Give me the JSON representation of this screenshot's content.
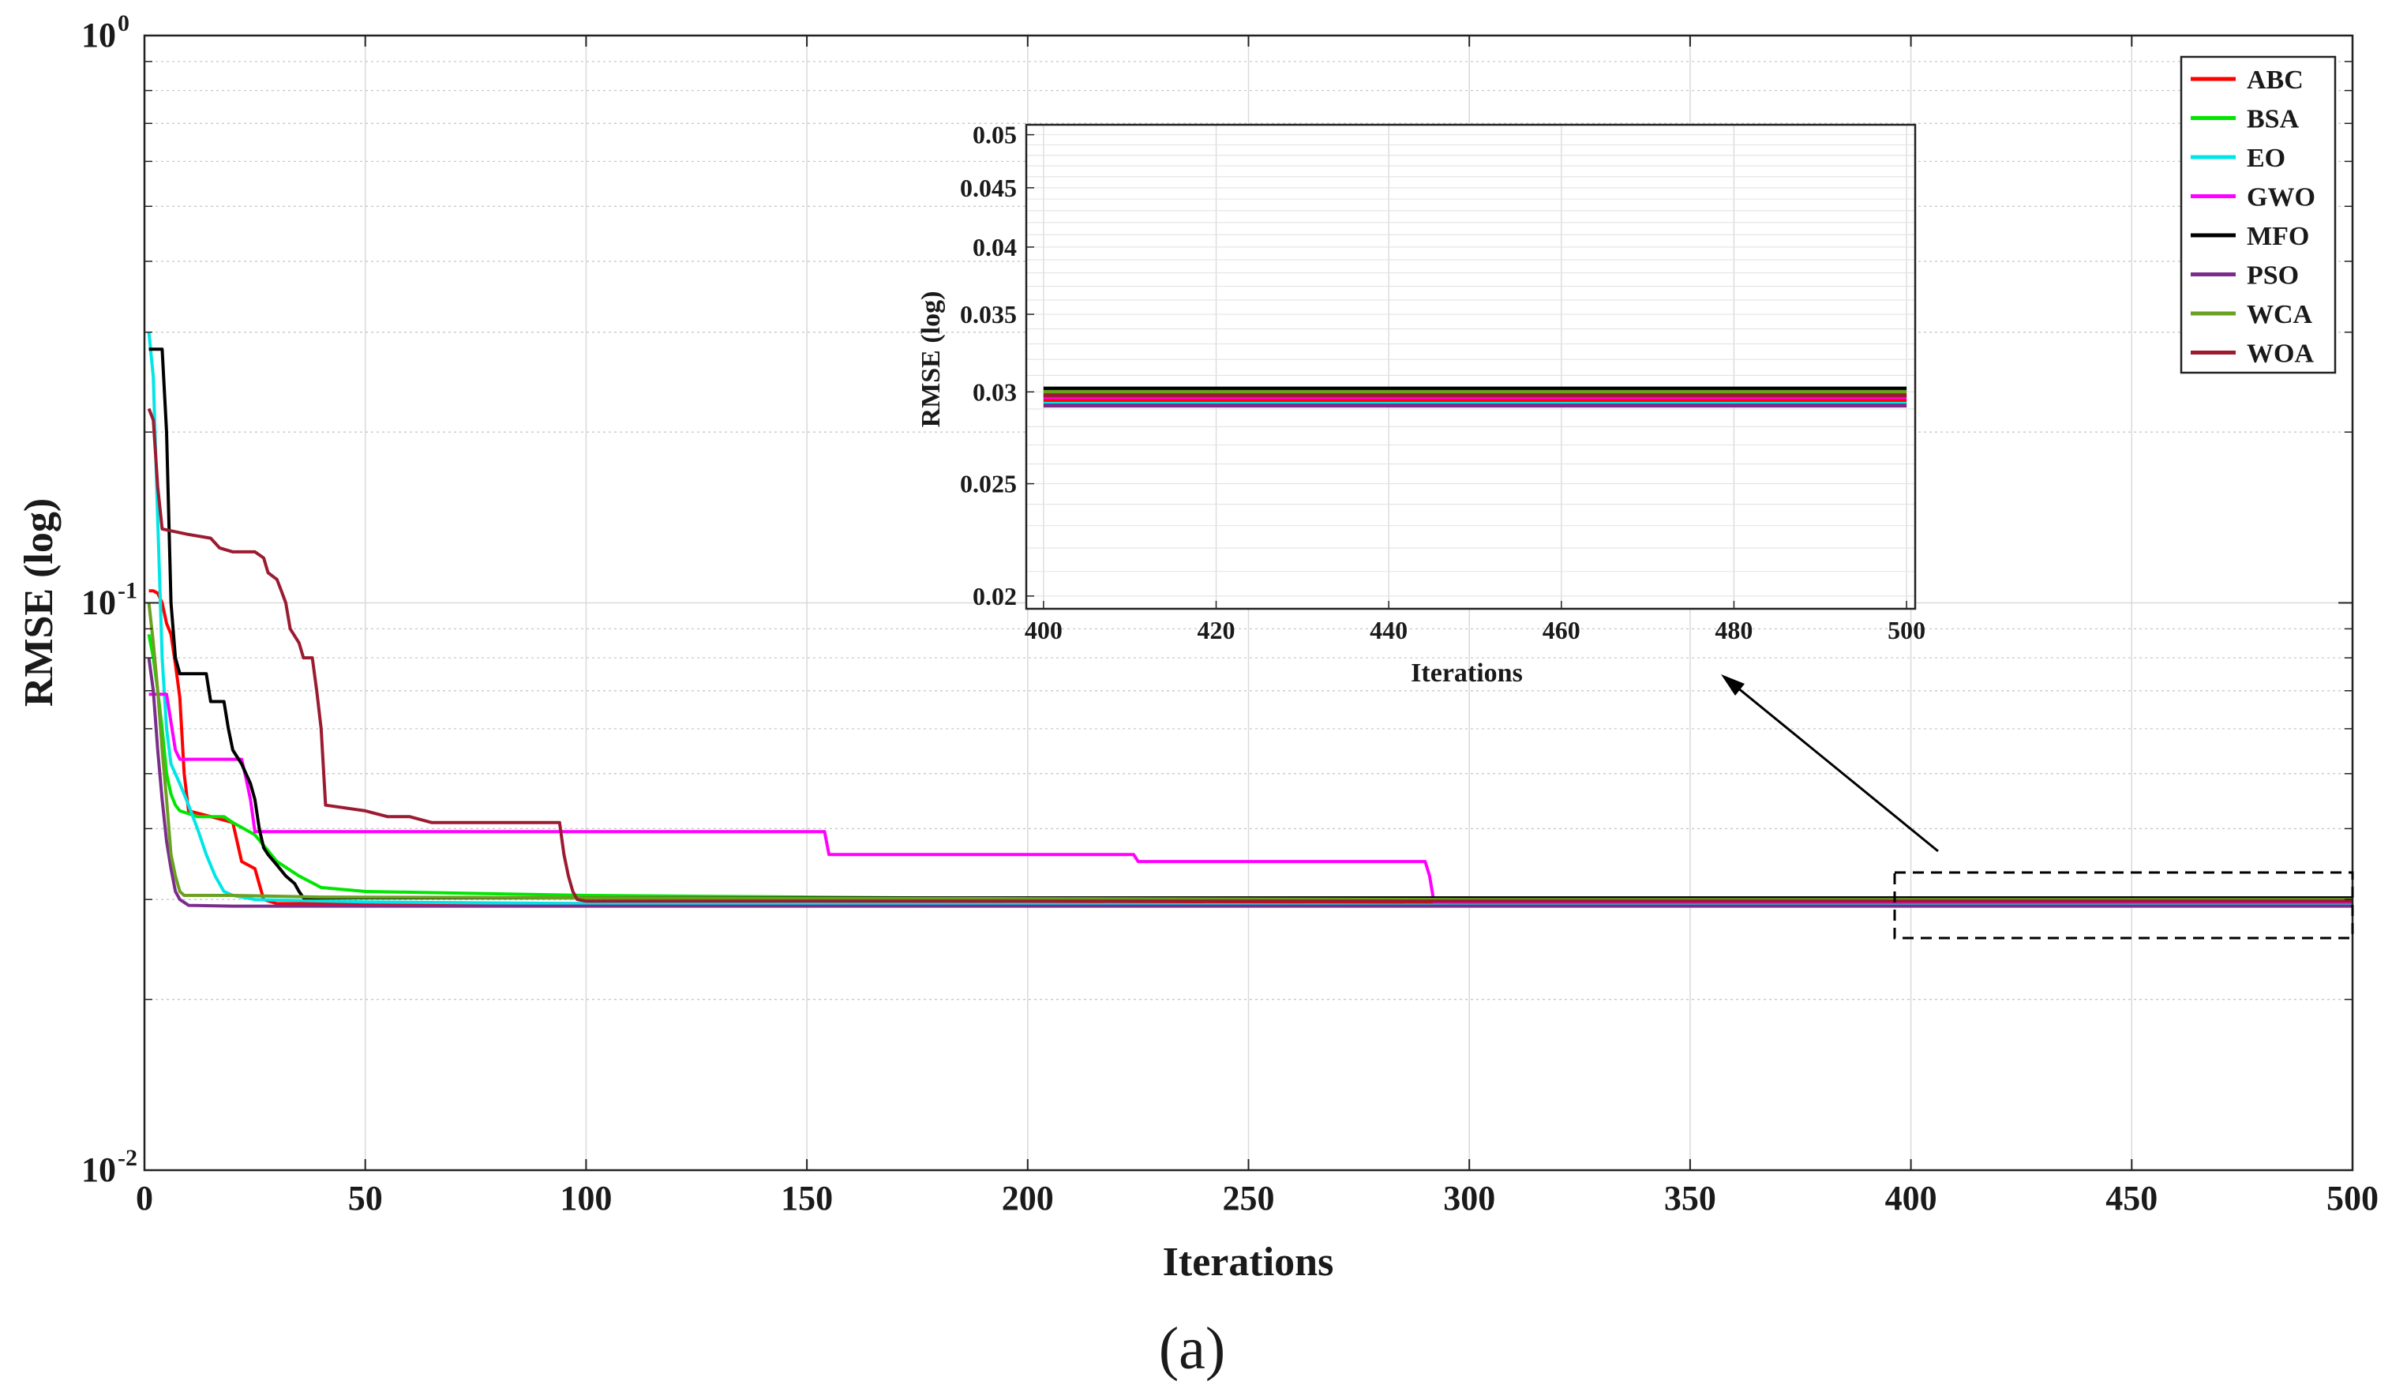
{
  "chart_data": {
    "type": "line",
    "yscale": "log",
    "xlabel": "Iterations",
    "ylabel": "RMSE (log)",
    "xlim": [
      0,
      500
    ],
    "ylim": [
      0.01,
      1
    ],
    "xticks": [
      "0",
      "50",
      "100",
      "150",
      "200",
      "250",
      "300",
      "350",
      "400",
      "450",
      "500"
    ],
    "yticks": [
      {
        "base": "10",
        "exp": "-2",
        "value": 0.01
      },
      {
        "base": "10",
        "exp": "-1",
        "value": 0.1
      },
      {
        "base": "10",
        "exp": "0",
        "value": 1
      }
    ],
    "grid": true,
    "legend_position": "top-right",
    "series": [
      {
        "name": "ABC",
        "color": "#ff0000",
        "points": [
          [
            1,
            0.105
          ],
          [
            2,
            0.105
          ],
          [
            3,
            0.104
          ],
          [
            4,
            0.1
          ],
          [
            5,
            0.092
          ],
          [
            6,
            0.088
          ],
          [
            7,
            0.078
          ],
          [
            8,
            0.068
          ],
          [
            9,
            0.05
          ],
          [
            10,
            0.043
          ],
          [
            15,
            0.042
          ],
          [
            20,
            0.041
          ],
          [
            22,
            0.035
          ],
          [
            25,
            0.034
          ],
          [
            27,
            0.03
          ],
          [
            30,
            0.0295
          ],
          [
            40,
            0.0295
          ],
          [
            100,
            0.0295
          ],
          [
            200,
            0.0295
          ],
          [
            300,
            0.0295
          ],
          [
            400,
            0.0295
          ],
          [
            500,
            0.0295
          ]
        ]
      },
      {
        "name": "BSA",
        "color": "#00e600",
        "points": [
          [
            1,
            0.088
          ],
          [
            2,
            0.08
          ],
          [
            3,
            0.07
          ],
          [
            4,
            0.06
          ],
          [
            5,
            0.05
          ],
          [
            6,
            0.046
          ],
          [
            7,
            0.044
          ],
          [
            8,
            0.043
          ],
          [
            12,
            0.042
          ],
          [
            18,
            0.042
          ],
          [
            20,
            0.041
          ],
          [
            25,
            0.039
          ],
          [
            30,
            0.035
          ],
          [
            35,
            0.033
          ],
          [
            40,
            0.0315
          ],
          [
            50,
            0.031
          ],
          [
            100,
            0.0305
          ],
          [
            150,
            0.0303
          ],
          [
            200,
            0.0301
          ],
          [
            300,
            0.0299
          ],
          [
            400,
            0.0298
          ],
          [
            500,
            0.0298
          ]
        ]
      },
      {
        "name": "EO",
        "color": "#00e6e6",
        "points": [
          [
            1,
            0.3
          ],
          [
            2,
            0.25
          ],
          [
            3,
            0.14
          ],
          [
            4,
            0.08
          ],
          [
            5,
            0.06
          ],
          [
            6,
            0.052
          ],
          [
            8,
            0.048
          ],
          [
            10,
            0.044
          ],
          [
            12,
            0.04
          ],
          [
            14,
            0.036
          ],
          [
            16,
            0.033
          ],
          [
            18,
            0.031
          ],
          [
            20,
            0.0305
          ],
          [
            25,
            0.03
          ],
          [
            50,
            0.0297
          ],
          [
            100,
            0.0295
          ],
          [
            200,
            0.0294
          ],
          [
            300,
            0.0293
          ],
          [
            400,
            0.0293
          ],
          [
            500,
            0.0293
          ]
        ]
      },
      {
        "name": "GWO",
        "color": "#ff00ff",
        "points": [
          [
            1,
            0.069
          ],
          [
            5,
            0.069
          ],
          [
            7,
            0.055
          ],
          [
            8,
            0.053
          ],
          [
            15,
            0.053
          ],
          [
            22,
            0.053
          ],
          [
            23,
            0.049
          ],
          [
            24,
            0.045
          ],
          [
            25,
            0.0395
          ],
          [
            50,
            0.0395
          ],
          [
            100,
            0.0395
          ],
          [
            154,
            0.0395
          ],
          [
            155,
            0.036
          ],
          [
            200,
            0.036
          ],
          [
            224,
            0.036
          ],
          [
            225,
            0.035
          ],
          [
            290,
            0.035
          ],
          [
            291,
            0.033
          ],
          [
            292,
            0.0297
          ],
          [
            400,
            0.0297
          ],
          [
            500,
            0.0297
          ]
        ]
      },
      {
        "name": "MFO",
        "color": "#000000",
        "points": [
          [
            1,
            0.28
          ],
          [
            2,
            0.28
          ],
          [
            3,
            0.28
          ],
          [
            4,
            0.28
          ],
          [
            5,
            0.2
          ],
          [
            6,
            0.1
          ],
          [
            7,
            0.08
          ],
          [
            8,
            0.075
          ],
          [
            10,
            0.075
          ],
          [
            14,
            0.075
          ],
          [
            15,
            0.067
          ],
          [
            18,
            0.067
          ],
          [
            19,
            0.06
          ],
          [
            20,
            0.055
          ],
          [
            22,
            0.052
          ],
          [
            24,
            0.048
          ],
          [
            25,
            0.045
          ],
          [
            26,
            0.04
          ],
          [
            27,
            0.037
          ],
          [
            28,
            0.036
          ],
          [
            30,
            0.0345
          ],
          [
            32,
            0.033
          ],
          [
            34,
            0.032
          ],
          [
            35,
            0.031
          ],
          [
            36,
            0.0302
          ],
          [
            50,
            0.0302
          ],
          [
            100,
            0.0302
          ],
          [
            200,
            0.0302
          ],
          [
            300,
            0.0302
          ],
          [
            400,
            0.0302
          ],
          [
            500,
            0.0302
          ]
        ]
      },
      {
        "name": "PSO",
        "color": "#7b2d8b",
        "points": [
          [
            1,
            0.08
          ],
          [
            2,
            0.07
          ],
          [
            3,
            0.055
          ],
          [
            4,
            0.045
          ],
          [
            5,
            0.038
          ],
          [
            6,
            0.034
          ],
          [
            7,
            0.031
          ],
          [
            8,
            0.03
          ],
          [
            10,
            0.0293
          ],
          [
            20,
            0.0292
          ],
          [
            100,
            0.0292
          ],
          [
            200,
            0.0292
          ],
          [
            300,
            0.0292
          ],
          [
            400,
            0.0292
          ],
          [
            500,
            0.0292
          ]
        ]
      },
      {
        "name": "WCA",
        "color": "#6aa121",
        "points": [
          [
            1,
            0.1
          ],
          [
            2,
            0.085
          ],
          [
            3,
            0.07
          ],
          [
            4,
            0.055
          ],
          [
            5,
            0.045
          ],
          [
            6,
            0.036
          ],
          [
            7,
            0.033
          ],
          [
            8,
            0.031
          ],
          [
            9,
            0.0305
          ],
          [
            20,
            0.0305
          ],
          [
            40,
            0.0303
          ],
          [
            100,
            0.0302
          ],
          [
            200,
            0.0301
          ],
          [
            300,
            0.03
          ],
          [
            400,
            0.03
          ],
          [
            500,
            0.03
          ]
        ]
      },
      {
        "name": "WOA",
        "color": "#9b1b30",
        "points": [
          [
            1,
            0.22
          ],
          [
            2,
            0.21
          ],
          [
            3,
            0.16
          ],
          [
            4,
            0.135
          ],
          [
            10,
            0.132
          ],
          [
            15,
            0.13
          ],
          [
            17,
            0.125
          ],
          [
            20,
            0.123
          ],
          [
            25,
            0.123
          ],
          [
            27,
            0.12
          ],
          [
            28,
            0.113
          ],
          [
            30,
            0.11
          ],
          [
            31,
            0.105
          ],
          [
            32,
            0.1
          ],
          [
            33,
            0.09
          ],
          [
            35,
            0.085
          ],
          [
            36,
            0.08
          ],
          [
            38,
            0.08
          ],
          [
            39,
            0.07
          ],
          [
            40,
            0.06
          ],
          [
            41,
            0.044
          ],
          [
            50,
            0.043
          ],
          [
            55,
            0.042
          ],
          [
            60,
            0.042
          ],
          [
            65,
            0.041
          ],
          [
            70,
            0.041
          ],
          [
            94,
            0.041
          ],
          [
            95,
            0.036
          ],
          [
            96,
            0.033
          ],
          [
            97,
            0.031
          ],
          [
            98,
            0.03
          ],
          [
            100,
            0.0298
          ],
          [
            200,
            0.0298
          ],
          [
            300,
            0.0298
          ],
          [
            400,
            0.0298
          ],
          [
            500,
            0.0298
          ]
        ]
      }
    ],
    "inset": {
      "xlabel": "Iterations",
      "ylabel": "RMSE (log)",
      "xlim": [
        398,
        501
      ],
      "ylim": [
        0.0195,
        0.051
      ],
      "xticks": [
        "400",
        "420",
        "440",
        "460",
        "480",
        "500"
      ],
      "yticks": [
        "0.02",
        "0.025",
        "0.03",
        "0.035",
        "0.04",
        "0.045",
        "0.05"
      ],
      "zoom_region": {
        "xlim": [
          396,
          500
        ],
        "ylim": [
          0.0265,
          0.033
        ]
      }
    },
    "caption": "(a)"
  }
}
